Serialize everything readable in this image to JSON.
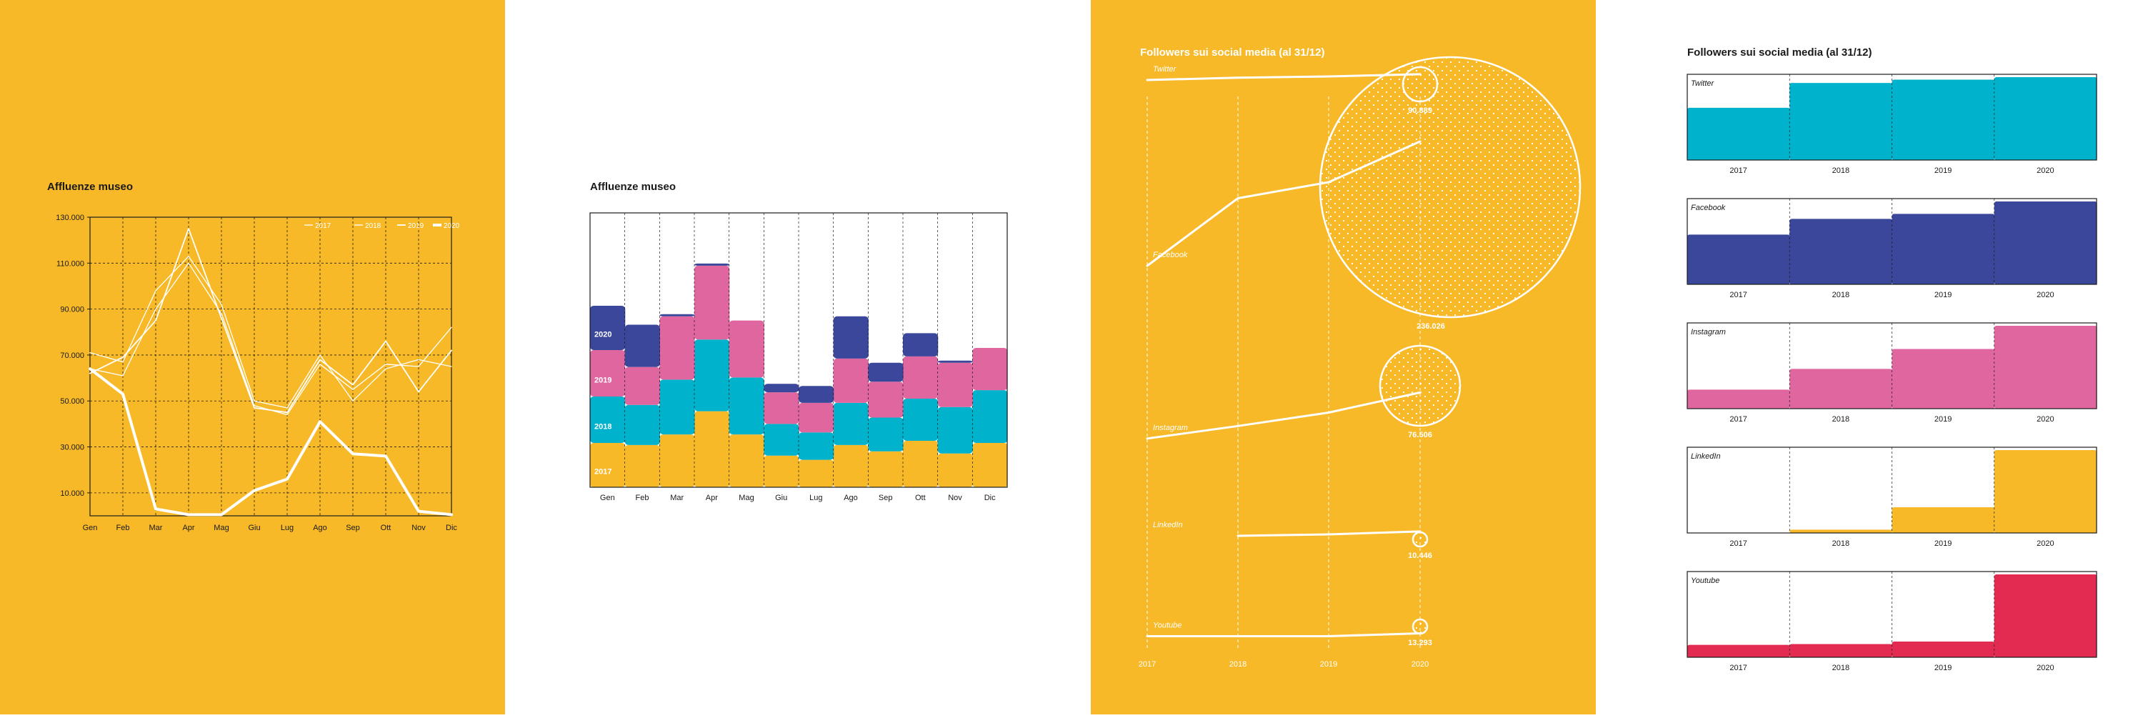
{
  "colors": {
    "mustard": "#F7B928",
    "white": "#FFFFFF",
    "navy": "#3B479A",
    "pink": "#E066A0",
    "cyan": "#00B2CC",
    "red": "#E32B52",
    "ink": "#1A1A1A"
  },
  "chart_data": [
    {
      "type": "line",
      "title": "Affluenze museo",
      "categories": [
        "Gen",
        "Feb",
        "Mar",
        "Apr",
        "Mag",
        "Giu",
        "Lug",
        "Ago",
        "Sep",
        "Ott",
        "Nov",
        "Dic"
      ],
      "yticks": [
        "130.000",
        "110.000",
        "90.000",
        "70.000",
        "50.000",
        "30.000",
        "10.000"
      ],
      "ylim": [
        0,
        130000
      ],
      "grid": true,
      "legend": "top-right",
      "series": [
        {
          "name": "2017",
          "values": [
            71000,
            67000,
            98000,
            113000,
            92000,
            50000,
            47000,
            70000,
            50000,
            64000,
            68000,
            65000
          ]
        },
        {
          "name": "2018",
          "values": [
            64000,
            61000,
            90000,
            110000,
            88000,
            48000,
            44000,
            66000,
            55000,
            66000,
            65000,
            82000
          ]
        },
        {
          "name": "2019",
          "values": [
            62000,
            69000,
            85000,
            125000,
            86000,
            47000,
            45000,
            68000,
            57000,
            76000,
            54000,
            72000
          ]
        },
        {
          "name": "2020",
          "values": [
            64000,
            53000,
            3000,
            500,
            500,
            11000,
            16000,
            41000,
            27000,
            26000,
            2000,
            500
          ]
        }
      ]
    },
    {
      "type": "area",
      "stacked": true,
      "title": "Affluenze museo",
      "categories": [
        "Gen",
        "Feb",
        "Mar",
        "Apr",
        "Mag",
        "Giu",
        "Lug",
        "Ago",
        "Sep",
        "Ott",
        "Nov",
        "Dic"
      ],
      "ylim": [
        0,
        130000
      ],
      "series": [
        {
          "name": "2017",
          "values": [
            21000,
            20000,
            25000,
            36000,
            25000,
            15000,
            13000,
            20000,
            17000,
            22000,
            16000,
            21000
          ]
        },
        {
          "name": "2018",
          "values": [
            22000,
            19000,
            26000,
            34000,
            27000,
            15000,
            13000,
            20000,
            16000,
            20000,
            22000,
            25000
          ]
        },
        {
          "name": "2019",
          "values": [
            22000,
            18000,
            30000,
            35000,
            27000,
            15000,
            14000,
            21000,
            17000,
            20000,
            21000,
            20000
          ]
        },
        {
          "name": "2020",
          "values": [
            21000,
            20000,
            1000,
            1000,
            0,
            4000,
            8000,
            20000,
            9000,
            11000,
            1000,
            0
          ]
        }
      ]
    },
    {
      "type": "line",
      "title": "Followers sui social media (al 31/12)",
      "categories": [
        "2017",
        "2018",
        "2019",
        "2020"
      ],
      "series": [
        {
          "name": "Twitter",
          "values": [
            86000,
            88000,
            89000,
            90889
          ]
        },
        {
          "name": "Facebook",
          "values": [
            120000,
            183000,
            198000,
            236026
          ]
        },
        {
          "name": "Instagram",
          "values": [
            25000,
            39000,
            54000,
            76506
          ]
        },
        {
          "name": "LinkedIn",
          "values": [
            null,
            8000,
            8800,
            10446
          ]
        },
        {
          "name": "Youtube",
          "values": [
            12500,
            12500,
            12500,
            13293
          ]
        }
      ],
      "end_labels": [
        "90.889",
        "236.026",
        "76.506",
        "10.446",
        "13.293"
      ]
    },
    {
      "type": "area",
      "title": "Followers sui social media (al 31/12)",
      "categories": [
        "2017",
        "2018",
        "2019",
        "2020"
      ],
      "panels": [
        {
          "name": "Twitter",
          "color": "cyan",
          "values": [
            0.63,
            0.93,
            0.97,
            1.0
          ]
        },
        {
          "name": "Facebook",
          "color": "navy",
          "values": [
            0.6,
            0.79,
            0.85,
            1.0
          ]
        },
        {
          "name": "Instagram",
          "color": "pink",
          "values": [
            0.23,
            0.48,
            0.72,
            1.0
          ]
        },
        {
          "name": "LinkedIn",
          "color": "mustard",
          "values": [
            0.0,
            0.04,
            0.31,
            1.0
          ]
        },
        {
          "name": "Youtube",
          "color": "red",
          "values": [
            0.15,
            0.16,
            0.19,
            1.0
          ]
        }
      ]
    }
  ]
}
